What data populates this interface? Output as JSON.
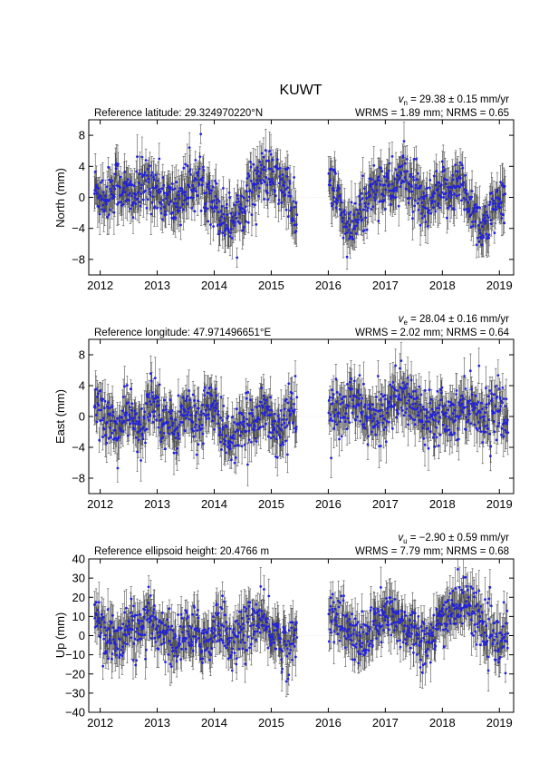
{
  "figure": {
    "title": "KUWT"
  },
  "chart_data": [
    {
      "type": "scatter",
      "ylabel": "North (mm)",
      "reference_text": "Reference latitude: 29.324970220°N",
      "velocity_symbol": "v",
      "velocity_sub": "n",
      "velocity_text": " = 29.38 ± 0.15 mm/yr",
      "stats_text": "WRMS = 1.89 mm; NRMS = 0.65",
      "xlim": [
        2011.8,
        2019.25
      ],
      "ylim": [
        -10,
        10
      ],
      "x_ticks": [
        2012,
        2013,
        2014,
        2015,
        2016,
        2017,
        2018,
        2019
      ],
      "x_tick_labels": [
        "2012",
        "2013",
        "2014",
        "2015",
        "2016",
        "2017",
        "2018",
        "2019"
      ],
      "y_ticks": [
        -8,
        -4,
        0,
        4,
        8
      ],
      "y_tick_labels": [
        "−8",
        "−4",
        "0",
        "4",
        "8"
      ],
      "data_gap": [
        2015.45,
        2016.0
      ],
      "series": [
        {
          "x": [
            2011.9,
            2012.1,
            2012.3,
            2012.5,
            2012.7,
            2012.9,
            2013.1,
            2013.3,
            2013.5,
            2013.7,
            2013.9,
            2014.1,
            2014.3,
            2014.5,
            2014.7,
            2014.9,
            2015.1,
            2015.3,
            2015.4,
            2016.05,
            2016.2,
            2016.35,
            2016.5,
            2016.7,
            2016.9,
            2017.1,
            2017.3,
            2017.5,
            2017.7,
            2017.9,
            2018.1,
            2018.3,
            2018.5,
            2018.7,
            2018.9,
            2019.1
          ],
          "y": [
            1,
            0,
            2,
            0,
            1,
            2,
            0,
            -1,
            1,
            2,
            1,
            -2,
            -3,
            -1,
            2,
            3,
            2,
            1,
            -3,
            2,
            -1,
            -5,
            -3,
            0,
            2,
            1,
            3,
            1,
            -2,
            0,
            1,
            2,
            -1,
            -4,
            -2,
            0
          ]
        }
      ]
    },
    {
      "type": "scatter",
      "ylabel": "East (mm)",
      "reference_text": "Reference longitude: 47.971496651°E",
      "velocity_symbol": "v",
      "velocity_sub": "e",
      "velocity_text": " = 28.04 ± 0.16 mm/yr",
      "stats_text": "WRMS = 2.02 mm; NRMS = 0.64",
      "xlim": [
        2011.8,
        2019.25
      ],
      "ylim": [
        -10,
        10
      ],
      "x_ticks": [
        2012,
        2013,
        2014,
        2015,
        2016,
        2017,
        2018,
        2019
      ],
      "x_tick_labels": [
        "2012",
        "2013",
        "2014",
        "2015",
        "2016",
        "2017",
        "2018",
        "2019"
      ],
      "y_ticks": [
        -8,
        -4,
        0,
        4,
        8
      ],
      "y_tick_labels": [
        "−8",
        "−4",
        "0",
        "4",
        "8"
      ],
      "data_gap": [
        2015.45,
        2016.0
      ],
      "series": [
        {
          "x": [
            2011.9,
            2012.1,
            2012.3,
            2012.5,
            2012.7,
            2012.9,
            2013.1,
            2013.3,
            2013.5,
            2013.7,
            2013.9,
            2014.1,
            2014.3,
            2014.5,
            2014.7,
            2014.9,
            2015.1,
            2015.3,
            2015.4,
            2016.05,
            2016.2,
            2016.4,
            2016.6,
            2016.8,
            2017.0,
            2017.2,
            2017.4,
            2017.6,
            2017.8,
            2018.0,
            2018.2,
            2018.4,
            2018.6,
            2018.8,
            2019.0,
            2019.15
          ],
          "y": [
            2,
            0,
            -2,
            1,
            -3,
            3,
            0,
            -2,
            1,
            -1,
            2,
            -1,
            -3,
            -2,
            0,
            1,
            -2,
            0,
            1,
            1,
            0,
            2,
            1,
            -1,
            1,
            3,
            2,
            1,
            0,
            1,
            0,
            2,
            1,
            0,
            1,
            -1
          ]
        }
      ]
    },
    {
      "type": "scatter",
      "ylabel": "Up (mm)",
      "reference_text": "Reference ellipsoid height: 20.4766 m",
      "velocity_symbol": "v",
      "velocity_sub": "u",
      "velocity_text": " = −2.90 ± 0.59 mm/yr",
      "stats_text": "WRMS = 7.79 mm; NRMS = 0.68",
      "xlim": [
        2011.8,
        2019.25
      ],
      "ylim": [
        -40,
        40
      ],
      "x_ticks": [
        2012,
        2013,
        2014,
        2015,
        2016,
        2017,
        2018,
        2019
      ],
      "x_tick_labels": [
        "2012",
        "2013",
        "2014",
        "2015",
        "2016",
        "2017",
        "2018",
        "2019"
      ],
      "y_ticks": [
        -40,
        -30,
        -20,
        -10,
        0,
        10,
        20,
        30,
        40
      ],
      "y_tick_labels": [
        "−40",
        "−30",
        "−20",
        "−10",
        "0",
        "10",
        "20",
        "30",
        "40"
      ],
      "data_gap": [
        2015.45,
        2016.0
      ],
      "series": [
        {
          "x": [
            2011.9,
            2012.1,
            2012.3,
            2012.5,
            2012.7,
            2012.9,
            2013.1,
            2013.3,
            2013.5,
            2013.7,
            2013.9,
            2014.1,
            2014.3,
            2014.5,
            2014.7,
            2014.9,
            2015.1,
            2015.3,
            2015.4,
            2016.05,
            2016.2,
            2016.4,
            2016.6,
            2016.8,
            2017.0,
            2017.2,
            2017.4,
            2017.6,
            2017.8,
            2018.0,
            2018.2,
            2018.4,
            2018.6,
            2018.8,
            2019.0,
            2019.15
          ],
          "y": [
            12,
            2,
            -5,
            5,
            0,
            8,
            3,
            -5,
            2,
            0,
            -3,
            10,
            -5,
            2,
            8,
            5,
            0,
            -8,
            -2,
            12,
            10,
            0,
            -5,
            5,
            10,
            8,
            5,
            0,
            -5,
            10,
            15,
            18,
            12,
            0,
            -5,
            0
          ]
        }
      ]
    }
  ]
}
